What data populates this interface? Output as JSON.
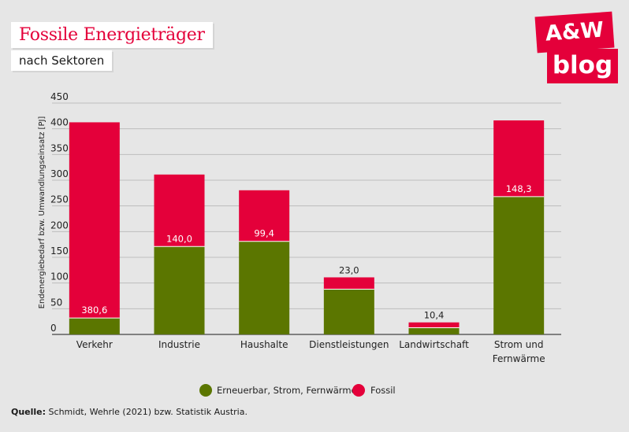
{
  "title": "Fossile Energieträger",
  "subtitle": "nach Sektoren",
  "logo": {
    "line1": "A&W",
    "line2": "blog"
  },
  "source": {
    "label": "Quelle:",
    "text": "Schmidt, Wehrle (2021) bzw. Statistik Austria."
  },
  "colors": {
    "accent": "#e4003a",
    "green": "#5b7600",
    "background": "#e6e6e6"
  },
  "chart_data": {
    "type": "bar",
    "stacked": true,
    "categories": [
      [
        "Verkehr"
      ],
      [
        "Industrie"
      ],
      [
        "Haushalte"
      ],
      [
        "Dienstleistungen"
      ],
      [
        "Landwirtschaft"
      ],
      [
        "Strom und",
        "Fernwärme"
      ]
    ],
    "series": [
      {
        "name": "Erneuerbar, Strom, Fernwärme",
        "color": "#5b7600",
        "values": [
          32,
          171,
          181,
          88,
          13,
          268
        ]
      },
      {
        "name": "Fossil",
        "color": "#e4003a",
        "values": [
          380.6,
          140.0,
          99.4,
          23.0,
          10.4,
          148.3
        ]
      }
    ],
    "data_labels": [
      "380,6",
      "140,0",
      "99,4",
      "23,0",
      "10,4",
      "148,3"
    ],
    "ylabel": "Endenergiebedarf bzw. Umwandlungseinsatz [PJ]",
    "yticks": [
      0,
      50,
      100,
      150,
      200,
      250,
      300,
      350,
      400,
      450
    ],
    "ylim": [
      0,
      450
    ],
    "grid": true,
    "legend_position": "bottom"
  }
}
